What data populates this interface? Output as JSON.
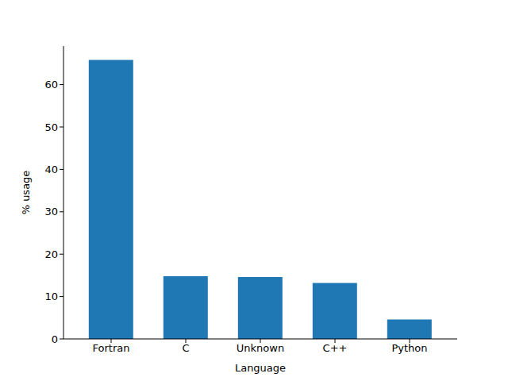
{
  "chart_data": {
    "type": "bar",
    "x_label": "Language",
    "y_label": "% usage",
    "categories": [
      "Fortran",
      "C",
      "Unknown",
      "C++",
      "Python"
    ],
    "values": [
      65.8,
      14.8,
      14.6,
      13.2,
      4.6
    ],
    "color": "#1f77b4",
    "ylim": [
      0,
      69.1
    ],
    "yticks": [
      0,
      10,
      20,
      30,
      40,
      50,
      60
    ],
    "grid": false
  }
}
